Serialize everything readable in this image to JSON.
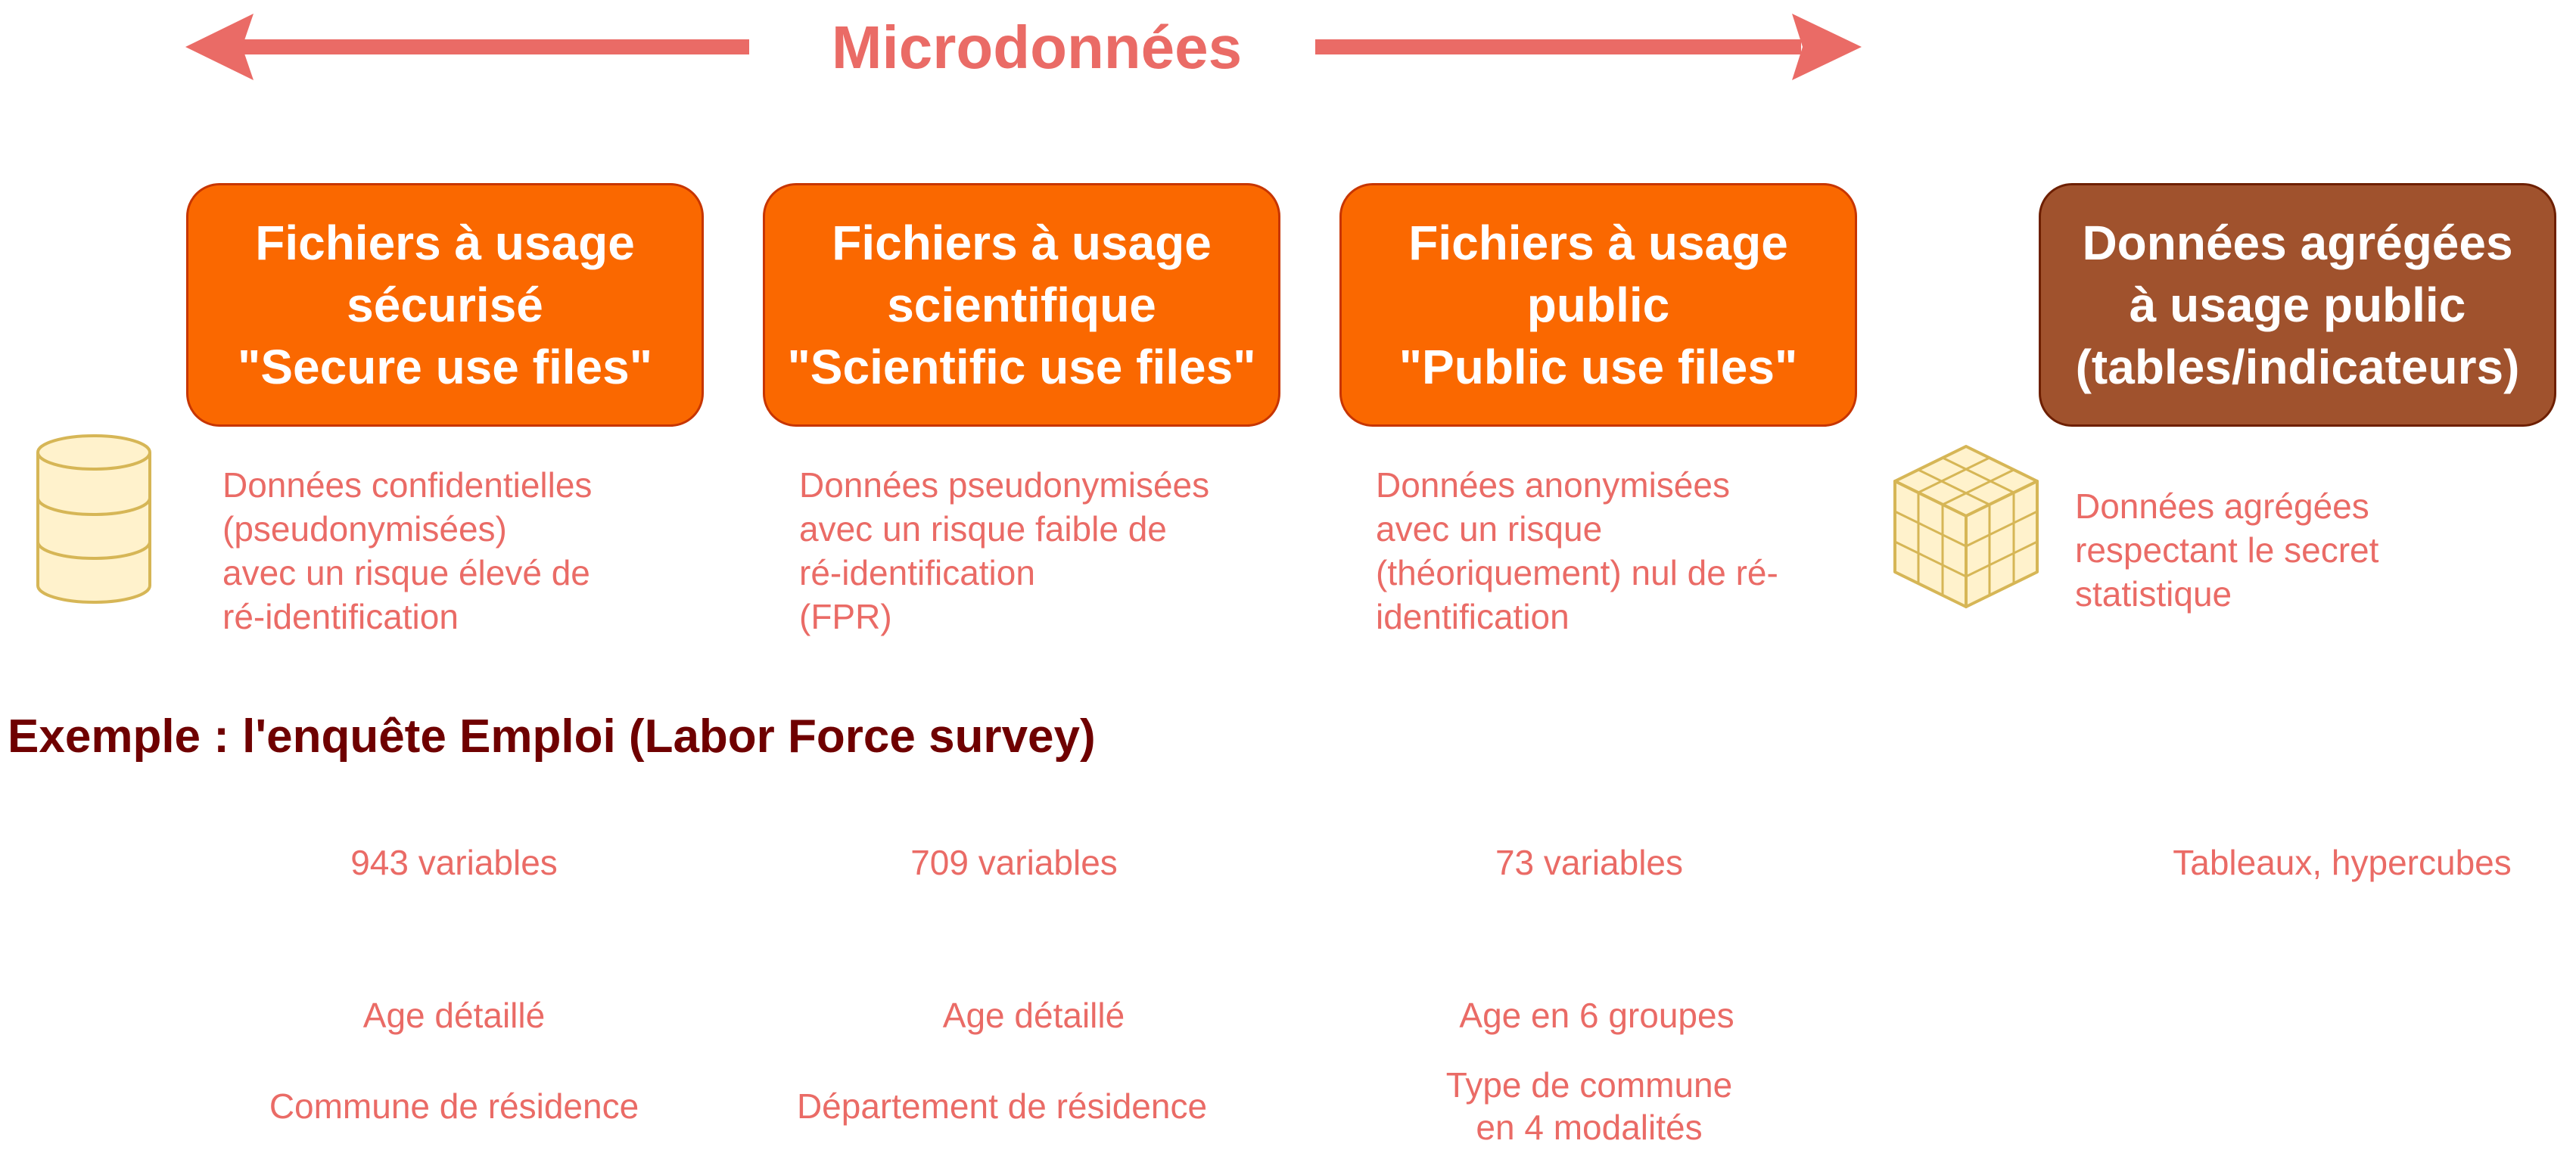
{
  "header": {
    "title": "Microdonnées"
  },
  "colors": {
    "accent": "#ea6b66",
    "box_fill": "#fa6800",
    "box_border": "#c73500",
    "agg_fill": "#a0522d",
    "agg_border": "#6d1f00",
    "example_title": "#6f0000",
    "icon_fill": "#fff2cc",
    "icon_stroke": "#d6b656"
  },
  "categories": [
    {
      "label": "Fichiers à usage\nsécurisé\n\"Secure use files\"",
      "description": "Données confidentielles\n(pseudonymisées)\navec un risque élevé de\n ré-identification"
    },
    {
      "label": "Fichiers à usage\nscientifique\n\"Scientific use files\"",
      "description": "Données pseudonymisées\navec un risque faible de\nré-identification\n                    (FPR)"
    },
    {
      "label": "Fichiers à usage\npublic\n\"Public use files\"",
      "description": "Données anonymisées\navec un risque\n(théoriquement) nul de ré-\nidentification"
    },
    {
      "label": "Données agrégées\nà usage public\n(tables/indicateurs)",
      "description": "Données agrégées\nrespectant le secret\nstatistique"
    }
  ],
  "icons": {
    "left": "database-icon",
    "right": "cube-icon"
  },
  "example": {
    "title": "Exemple : l'enquête Emploi (Labor Force survey)",
    "variables": [
      "943 variables",
      "709 variables",
      "73 variables",
      "Tableaux, hypercubes"
    ],
    "age": [
      "Age détaillé",
      "Age détaillé",
      "Age en 6 groupes"
    ],
    "residence": [
      "Commune de résidence",
      "Département de résidence",
      "Type de commune\nen 4 modalités"
    ]
  }
}
